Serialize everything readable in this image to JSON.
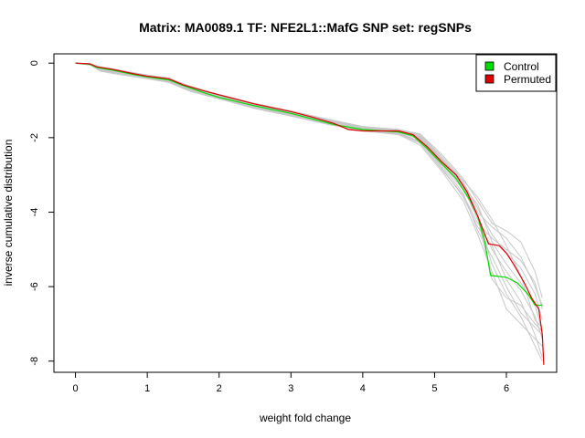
{
  "chart_data": {
    "type": "line",
    "title": "Matrix: MA0089.1 TF: NFE2L1::MafG SNP set: regSNPs",
    "xlabel": "weight fold change",
    "ylabel": "inverse cumulative distribution",
    "xlim": [
      -0.3,
      6.7
    ],
    "ylim": [
      -8.3,
      0.25
    ],
    "xticks": [
      0,
      1,
      2,
      3,
      4,
      5,
      6
    ],
    "yticks": [
      0,
      -2,
      -4,
      -6,
      -8
    ],
    "legend": {
      "placement": "top-right"
    },
    "background_series_color": "#c8c8c8",
    "background_series": [
      [
        [
          0,
          0
        ],
        [
          0.2,
          -0.02
        ],
        [
          0.35,
          -0.2
        ],
        [
          0.6,
          -0.27
        ],
        [
          1,
          -0.4
        ],
        [
          1.3,
          -0.5
        ],
        [
          1.6,
          -0.72
        ],
        [
          2,
          -0.92
        ],
        [
          2.5,
          -1.18
        ],
        [
          3,
          -1.38
        ],
        [
          3.5,
          -1.6
        ],
        [
          4,
          -1.78
        ],
        [
          4.5,
          -1.88
        ],
        [
          4.8,
          -2.1
        ],
        [
          5.1,
          -2.8
        ],
        [
          5.4,
          -3.6
        ],
        [
          5.6,
          -4.4
        ],
        [
          5.8,
          -4.9
        ],
        [
          6,
          -5.8
        ],
        [
          6.2,
          -6.4
        ],
        [
          6.4,
          -7.3
        ],
        [
          6.5,
          -7.9
        ]
      ],
      [
        [
          0,
          0
        ],
        [
          0.2,
          -0.05
        ],
        [
          0.35,
          -0.12
        ],
        [
          0.6,
          -0.2
        ],
        [
          1,
          -0.34
        ],
        [
          1.3,
          -0.42
        ],
        [
          1.6,
          -0.66
        ],
        [
          2,
          -0.88
        ],
        [
          2.5,
          -1.12
        ],
        [
          3,
          -1.32
        ],
        [
          3.5,
          -1.55
        ],
        [
          4,
          -1.74
        ],
        [
          4.5,
          -1.8
        ],
        [
          4.8,
          -1.95
        ],
        [
          5.1,
          -2.55
        ],
        [
          5.4,
          -3.2
        ],
        [
          5.6,
          -3.9
        ],
        [
          5.8,
          -4.6
        ],
        [
          6,
          -5.1
        ],
        [
          6.2,
          -5.5
        ],
        [
          6.4,
          -6.2
        ],
        [
          6.5,
          -6.9
        ]
      ],
      [
        [
          0,
          0
        ],
        [
          0.2,
          -0.03
        ],
        [
          0.35,
          -0.18
        ],
        [
          0.6,
          -0.25
        ],
        [
          1,
          -0.38
        ],
        [
          1.3,
          -0.48
        ],
        [
          1.6,
          -0.7
        ],
        [
          2,
          -0.9
        ],
        [
          2.5,
          -1.16
        ],
        [
          3,
          -1.36
        ],
        [
          3.5,
          -1.58
        ],
        [
          4,
          -1.76
        ],
        [
          4.5,
          -1.86
        ],
        [
          4.8,
          -2.05
        ],
        [
          5.1,
          -2.7
        ],
        [
          5.4,
          -3.4
        ],
        [
          5.6,
          -4.1
        ],
        [
          5.8,
          -5.4
        ],
        [
          6,
          -6.2
        ],
        [
          6.2,
          -6.8
        ],
        [
          6.4,
          -7.6
        ],
        [
          6.5,
          -8
        ]
      ],
      [
        [
          0,
          0
        ],
        [
          0.2,
          -0.01
        ],
        [
          0.35,
          -0.1
        ],
        [
          0.6,
          -0.18
        ],
        [
          1,
          -0.32
        ],
        [
          1.3,
          -0.4
        ],
        [
          1.6,
          -0.62
        ],
        [
          2,
          -0.84
        ],
        [
          2.5,
          -1.08
        ],
        [
          3,
          -1.28
        ],
        [
          3.5,
          -1.5
        ],
        [
          4,
          -1.7
        ],
        [
          4.5,
          -1.78
        ],
        [
          4.8,
          -1.9
        ],
        [
          5.1,
          -2.45
        ],
        [
          5.4,
          -3.1
        ],
        [
          5.6,
          -3.7
        ],
        [
          5.8,
          -4.3
        ],
        [
          6,
          -4.5
        ],
        [
          6.2,
          -4.8
        ],
        [
          6.4,
          -5.6
        ],
        [
          6.5,
          -6.3
        ]
      ],
      [
        [
          0,
          0
        ],
        [
          0.2,
          -0.04
        ],
        [
          0.35,
          -0.22
        ],
        [
          0.6,
          -0.3
        ],
        [
          1,
          -0.42
        ],
        [
          1.3,
          -0.52
        ],
        [
          1.6,
          -0.76
        ],
        [
          2,
          -0.96
        ],
        [
          2.5,
          -1.22
        ],
        [
          3,
          -1.42
        ],
        [
          3.5,
          -1.64
        ],
        [
          4,
          -1.82
        ],
        [
          4.5,
          -1.92
        ],
        [
          4.8,
          -2.2
        ],
        [
          5.1,
          -2.9
        ],
        [
          5.4,
          -3.7
        ],
        [
          5.6,
          -4.6
        ],
        [
          5.8,
          -5.6
        ],
        [
          6,
          -6.6
        ],
        [
          6.2,
          -7
        ],
        [
          6.4,
          -7.4
        ],
        [
          6.5,
          -7.6
        ]
      ],
      [
        [
          0,
          0
        ],
        [
          0.2,
          -0.02
        ],
        [
          0.35,
          -0.14
        ],
        [
          0.6,
          -0.22
        ],
        [
          1,
          -0.35
        ],
        [
          1.3,
          -0.44
        ],
        [
          1.6,
          -0.68
        ],
        [
          2,
          -0.86
        ],
        [
          2.5,
          -1.1
        ],
        [
          3,
          -1.3
        ],
        [
          3.5,
          -1.52
        ],
        [
          4,
          -1.72
        ],
        [
          4.5,
          -1.82
        ],
        [
          4.8,
          -2
        ],
        [
          5.1,
          -2.6
        ],
        [
          5.4,
          -3.3
        ],
        [
          5.6,
          -3.8
        ],
        [
          5.8,
          -4.8
        ],
        [
          6,
          -5.4
        ],
        [
          6.2,
          -5.9
        ],
        [
          6.4,
          -6.5
        ],
        [
          6.5,
          -7.2
        ]
      ],
      [
        [
          0,
          0
        ],
        [
          0.2,
          -0.03
        ],
        [
          0.35,
          -0.16
        ],
        [
          0.6,
          -0.24
        ],
        [
          1,
          -0.37
        ],
        [
          1.3,
          -0.46
        ],
        [
          1.6,
          -0.69
        ],
        [
          2,
          -0.89
        ],
        [
          2.5,
          -1.14
        ],
        [
          3,
          -1.34
        ],
        [
          3.5,
          -1.56
        ],
        [
          4,
          -1.75
        ],
        [
          4.5,
          -1.84
        ],
        [
          4.8,
          -2.02
        ],
        [
          5.1,
          -2.65
        ],
        [
          5.4,
          -3.35
        ],
        [
          5.6,
          -4.2
        ],
        [
          5.8,
          -5
        ],
        [
          6,
          -5.6
        ],
        [
          6.2,
          -6.1
        ],
        [
          6.4,
          -6.8
        ],
        [
          6.5,
          -7.4
        ]
      ],
      [
        [
          0,
          0
        ],
        [
          0.2,
          -0.05
        ],
        [
          0.35,
          -0.2
        ],
        [
          0.6,
          -0.28
        ],
        [
          1,
          -0.41
        ],
        [
          1.3,
          -0.5
        ],
        [
          1.6,
          -0.74
        ],
        [
          2,
          -0.94
        ],
        [
          2.5,
          -1.2
        ],
        [
          3,
          -1.4
        ],
        [
          3.5,
          -1.62
        ],
        [
          4,
          -1.8
        ],
        [
          4.5,
          -1.9
        ],
        [
          4.8,
          -2.15
        ],
        [
          5.1,
          -2.85
        ],
        [
          5.4,
          -3.55
        ],
        [
          5.6,
          -4.3
        ],
        [
          5.8,
          -4.7
        ],
        [
          6,
          -5
        ],
        [
          6.2,
          -5.3
        ],
        [
          6.4,
          -5.9
        ],
        [
          6.5,
          -6.6
        ]
      ],
      [
        [
          0,
          0
        ],
        [
          0.2,
          -0.02
        ],
        [
          0.35,
          -0.11
        ],
        [
          0.6,
          -0.19
        ],
        [
          1,
          -0.33
        ],
        [
          1.3,
          -0.41
        ],
        [
          1.6,
          -0.64
        ],
        [
          2,
          -0.85
        ],
        [
          2.5,
          -1.09
        ],
        [
          3,
          -1.29
        ],
        [
          3.5,
          -1.51
        ],
        [
          4,
          -1.71
        ],
        [
          4.5,
          -1.79
        ],
        [
          4.8,
          -1.92
        ],
        [
          5.1,
          -2.5
        ],
        [
          5.4,
          -3.15
        ],
        [
          5.6,
          -3.6
        ],
        [
          5.8,
          -4.2
        ],
        [
          6,
          -4.9
        ],
        [
          6.2,
          -5.7
        ],
        [
          6.4,
          -6.9
        ],
        [
          6.5,
          -7.1
        ]
      ],
      [
        [
          0,
          0
        ],
        [
          0.2,
          -0.04
        ],
        [
          0.35,
          -0.19
        ],
        [
          0.6,
          -0.26
        ],
        [
          1,
          -0.39
        ],
        [
          1.3,
          -0.49
        ],
        [
          1.6,
          -0.73
        ],
        [
          2,
          -0.93
        ],
        [
          2.5,
          -1.19
        ],
        [
          3,
          -1.39
        ],
        [
          3.5,
          -1.61
        ],
        [
          4,
          -1.79
        ],
        [
          4.5,
          -1.89
        ],
        [
          4.8,
          -2.12
        ],
        [
          5.1,
          -2.75
        ],
        [
          5.4,
          -3.5
        ],
        [
          5.6,
          -4.5
        ],
        [
          5.8,
          -5.2
        ],
        [
          6,
          -6
        ],
        [
          6.2,
          -6.7
        ],
        [
          6.4,
          -7.1
        ],
        [
          6.5,
          -7.3
        ]
      ],
      [
        [
          0,
          0
        ],
        [
          0.2,
          -0.03
        ],
        [
          0.35,
          -0.13
        ],
        [
          0.6,
          -0.21
        ],
        [
          1,
          -0.34
        ],
        [
          1.3,
          -0.43
        ],
        [
          1.6,
          -0.65
        ],
        [
          2,
          -0.87
        ],
        [
          2.5,
          -1.11
        ],
        [
          3,
          -1.31
        ],
        [
          3.5,
          -1.53
        ],
        [
          4,
          -1.73
        ],
        [
          4.5,
          -1.81
        ],
        [
          4.8,
          -1.98
        ],
        [
          5.1,
          -2.58
        ],
        [
          5.4,
          -3.25
        ],
        [
          5.6,
          -4
        ],
        [
          5.8,
          -4.4
        ],
        [
          6,
          -4.7
        ],
        [
          6.2,
          -5.2
        ],
        [
          6.4,
          -6
        ],
        [
          6.5,
          -6.5
        ]
      ],
      [
        [
          0,
          0
        ],
        [
          0.2,
          -0.01
        ],
        [
          0.35,
          -0.17
        ],
        [
          0.6,
          -0.23
        ],
        [
          1,
          -0.36
        ],
        [
          1.3,
          -0.45
        ],
        [
          1.6,
          -0.67
        ],
        [
          2,
          -0.88
        ],
        [
          2.5,
          -1.13
        ],
        [
          3,
          -1.33
        ],
        [
          3.5,
          -1.54
        ],
        [
          4,
          -1.74
        ],
        [
          4.5,
          -1.83
        ],
        [
          4.8,
          -2.03
        ],
        [
          5.1,
          -2.62
        ],
        [
          5.4,
          -3.3
        ],
        [
          5.6,
          -4.15
        ],
        [
          5.8,
          -5.8
        ],
        [
          6,
          -6.3
        ],
        [
          6.2,
          -6.5
        ],
        [
          6.4,
          -7
        ],
        [
          6.5,
          -7.2
        ]
      ]
    ],
    "series": [
      {
        "name": "Control",
        "color": "#00dd00",
        "points": [
          [
            0,
            0
          ],
          [
            0.2,
            -0.03
          ],
          [
            0.3,
            -0.12
          ],
          [
            0.5,
            -0.18
          ],
          [
            0.8,
            -0.3
          ],
          [
            1,
            -0.37
          ],
          [
            1.3,
            -0.45
          ],
          [
            1.5,
            -0.6
          ],
          [
            1.8,
            -0.8
          ],
          [
            2,
            -0.92
          ],
          [
            2.5,
            -1.15
          ],
          [
            3,
            -1.35
          ],
          [
            3.3,
            -1.5
          ],
          [
            3.6,
            -1.65
          ],
          [
            4,
            -1.78
          ],
          [
            4.5,
            -1.85
          ],
          [
            4.7,
            -1.95
          ],
          [
            4.9,
            -2.3
          ],
          [
            5.1,
            -2.7
          ],
          [
            5.3,
            -3.1
          ],
          [
            5.5,
            -3.7
          ],
          [
            5.6,
            -4.1
          ],
          [
            5.7,
            -4.8
          ],
          [
            5.78,
            -5.7
          ],
          [
            6,
            -5.75
          ],
          [
            6.15,
            -5.9
          ],
          [
            6.3,
            -6.2
          ],
          [
            6.4,
            -6.5
          ],
          [
            6.5,
            -6.5
          ]
        ]
      },
      {
        "name": "Permuted",
        "color": "#dd0000",
        "points": [
          [
            0,
            0
          ],
          [
            0.2,
            -0.02
          ],
          [
            0.3,
            -0.1
          ],
          [
            0.5,
            -0.16
          ],
          [
            0.8,
            -0.28
          ],
          [
            1,
            -0.35
          ],
          [
            1.3,
            -0.42
          ],
          [
            1.5,
            -0.58
          ],
          [
            1.8,
            -0.75
          ],
          [
            2,
            -0.85
          ],
          [
            2.5,
            -1.1
          ],
          [
            3,
            -1.3
          ],
          [
            3.3,
            -1.45
          ],
          [
            3.6,
            -1.62
          ],
          [
            3.8,
            -1.78
          ],
          [
            4,
            -1.82
          ],
          [
            4.5,
            -1.82
          ],
          [
            4.7,
            -1.92
          ],
          [
            4.9,
            -2.25
          ],
          [
            5.1,
            -2.65
          ],
          [
            5.3,
            -3
          ],
          [
            5.45,
            -3.45
          ],
          [
            5.6,
            -4.1
          ],
          [
            5.75,
            -4.85
          ],
          [
            5.9,
            -4.9
          ],
          [
            6,
            -5.1
          ],
          [
            6.1,
            -5.4
          ],
          [
            6.25,
            -5.9
          ],
          [
            6.35,
            -6.3
          ],
          [
            6.45,
            -6.6
          ],
          [
            6.5,
            -7.3
          ],
          [
            6.52,
            -8.1
          ]
        ]
      }
    ]
  }
}
